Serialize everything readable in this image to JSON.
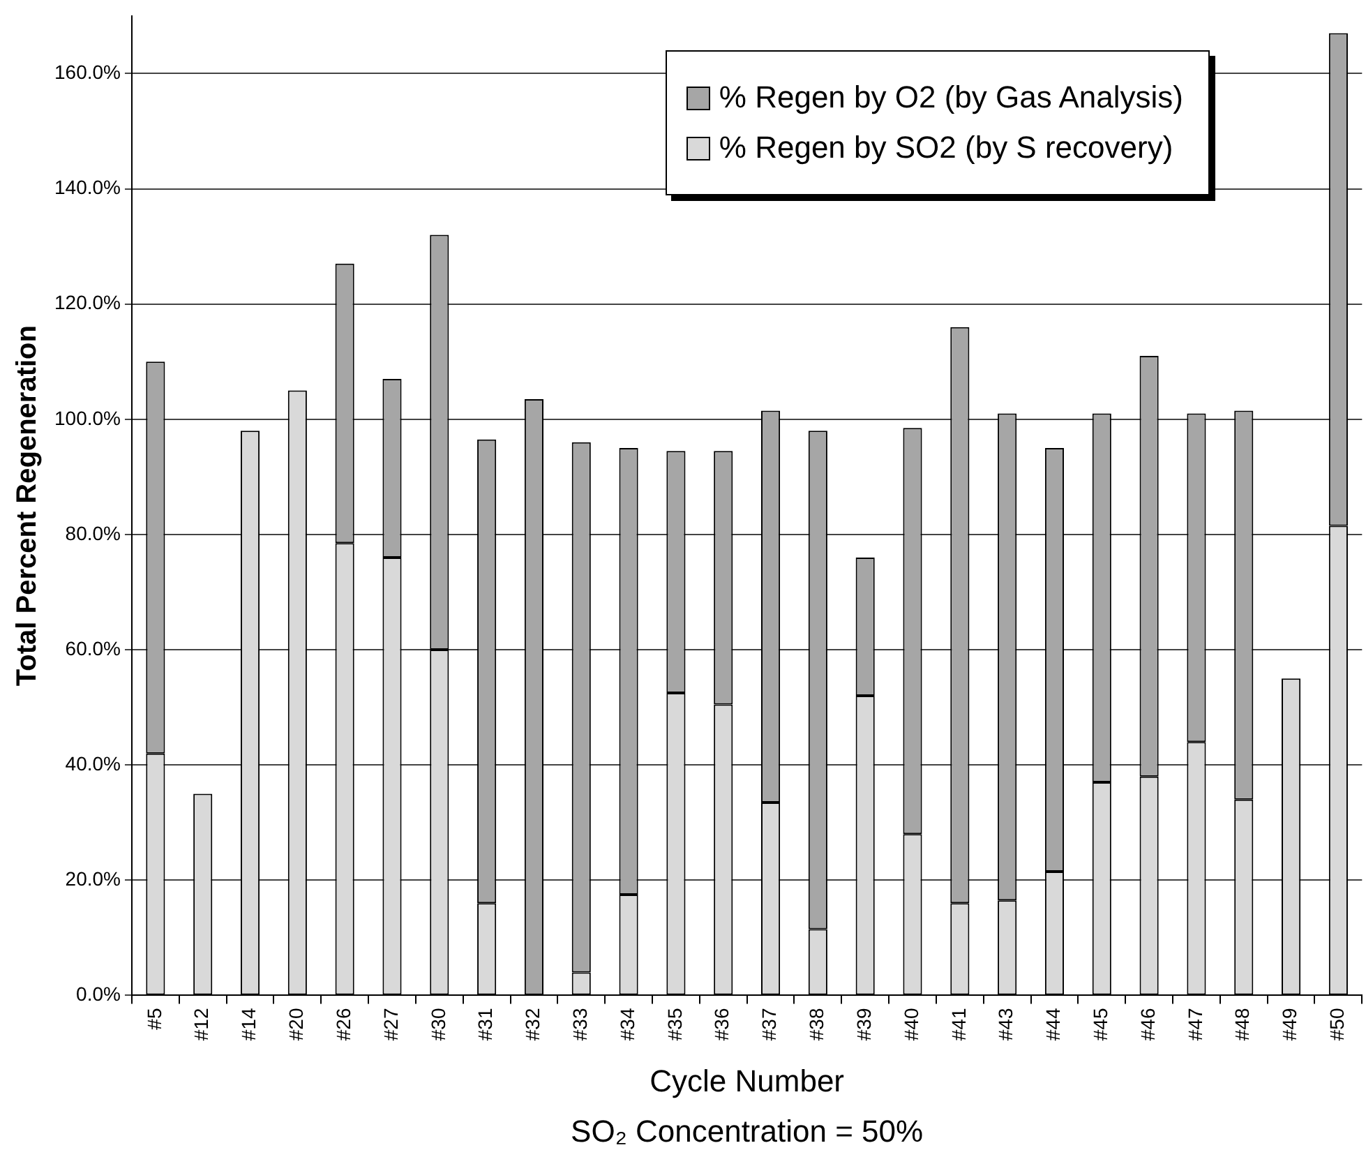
{
  "chart_data": {
    "type": "bar",
    "stacked": true,
    "ylabel": "Total Percent Regeneration",
    "xlabel": "Cycle Number",
    "annotations": [
      "SO₂ Concentration = 50%"
    ],
    "categories": [
      "#5",
      "#12",
      "#14",
      "#20",
      "#26",
      "#27",
      "#30",
      "#31",
      "#32",
      "#33",
      "#34",
      "#35",
      "#36",
      "#37",
      "#38",
      "#39",
      "#40",
      "#41",
      "#43",
      "#44",
      "#45",
      "#46",
      "#47",
      "#48",
      "#49",
      "#50"
    ],
    "series": [
      {
        "name": "% Regen by SO2 (by S recovery)",
        "color": "#d9d9d9",
        "values": [
          42,
          35,
          98,
          105,
          78.5,
          76,
          60,
          16,
          0,
          4,
          17.5,
          52.5,
          50.5,
          33.5,
          11.5,
          52,
          28,
          16,
          16.5,
          21.5,
          37,
          38,
          44,
          34,
          55,
          81.5
        ]
      },
      {
        "name": "% Regen by O2 (by Gas Analysis)",
        "color": "#a6a6a6",
        "values": [
          68,
          0,
          0,
          0,
          48.5,
          31,
          72,
          80.5,
          103.5,
          92,
          77.5,
          42,
          44,
          68,
          86.5,
          24,
          70.5,
          100,
          84.5,
          73.5,
          64,
          73,
          57,
          67.5,
          0,
          85.5
        ]
      }
    ],
    "ylim": [
      0,
      170
    ],
    "yticks": [
      {
        "value": 0,
        "label": "0.0%"
      },
      {
        "value": 20,
        "label": "20.0%"
      },
      {
        "value": 40,
        "label": "40.0%"
      },
      {
        "value": 60,
        "label": "60.0%"
      },
      {
        "value": 80,
        "label": "80.0%"
      },
      {
        "value": 100,
        "label": "100.0%"
      },
      {
        "value": 120,
        "label": "120.0%"
      },
      {
        "value": 140,
        "label": "140.0%"
      },
      {
        "value": 160,
        "label": "160.0%"
      }
    ],
    "grid": "y",
    "legend": "top right"
  }
}
